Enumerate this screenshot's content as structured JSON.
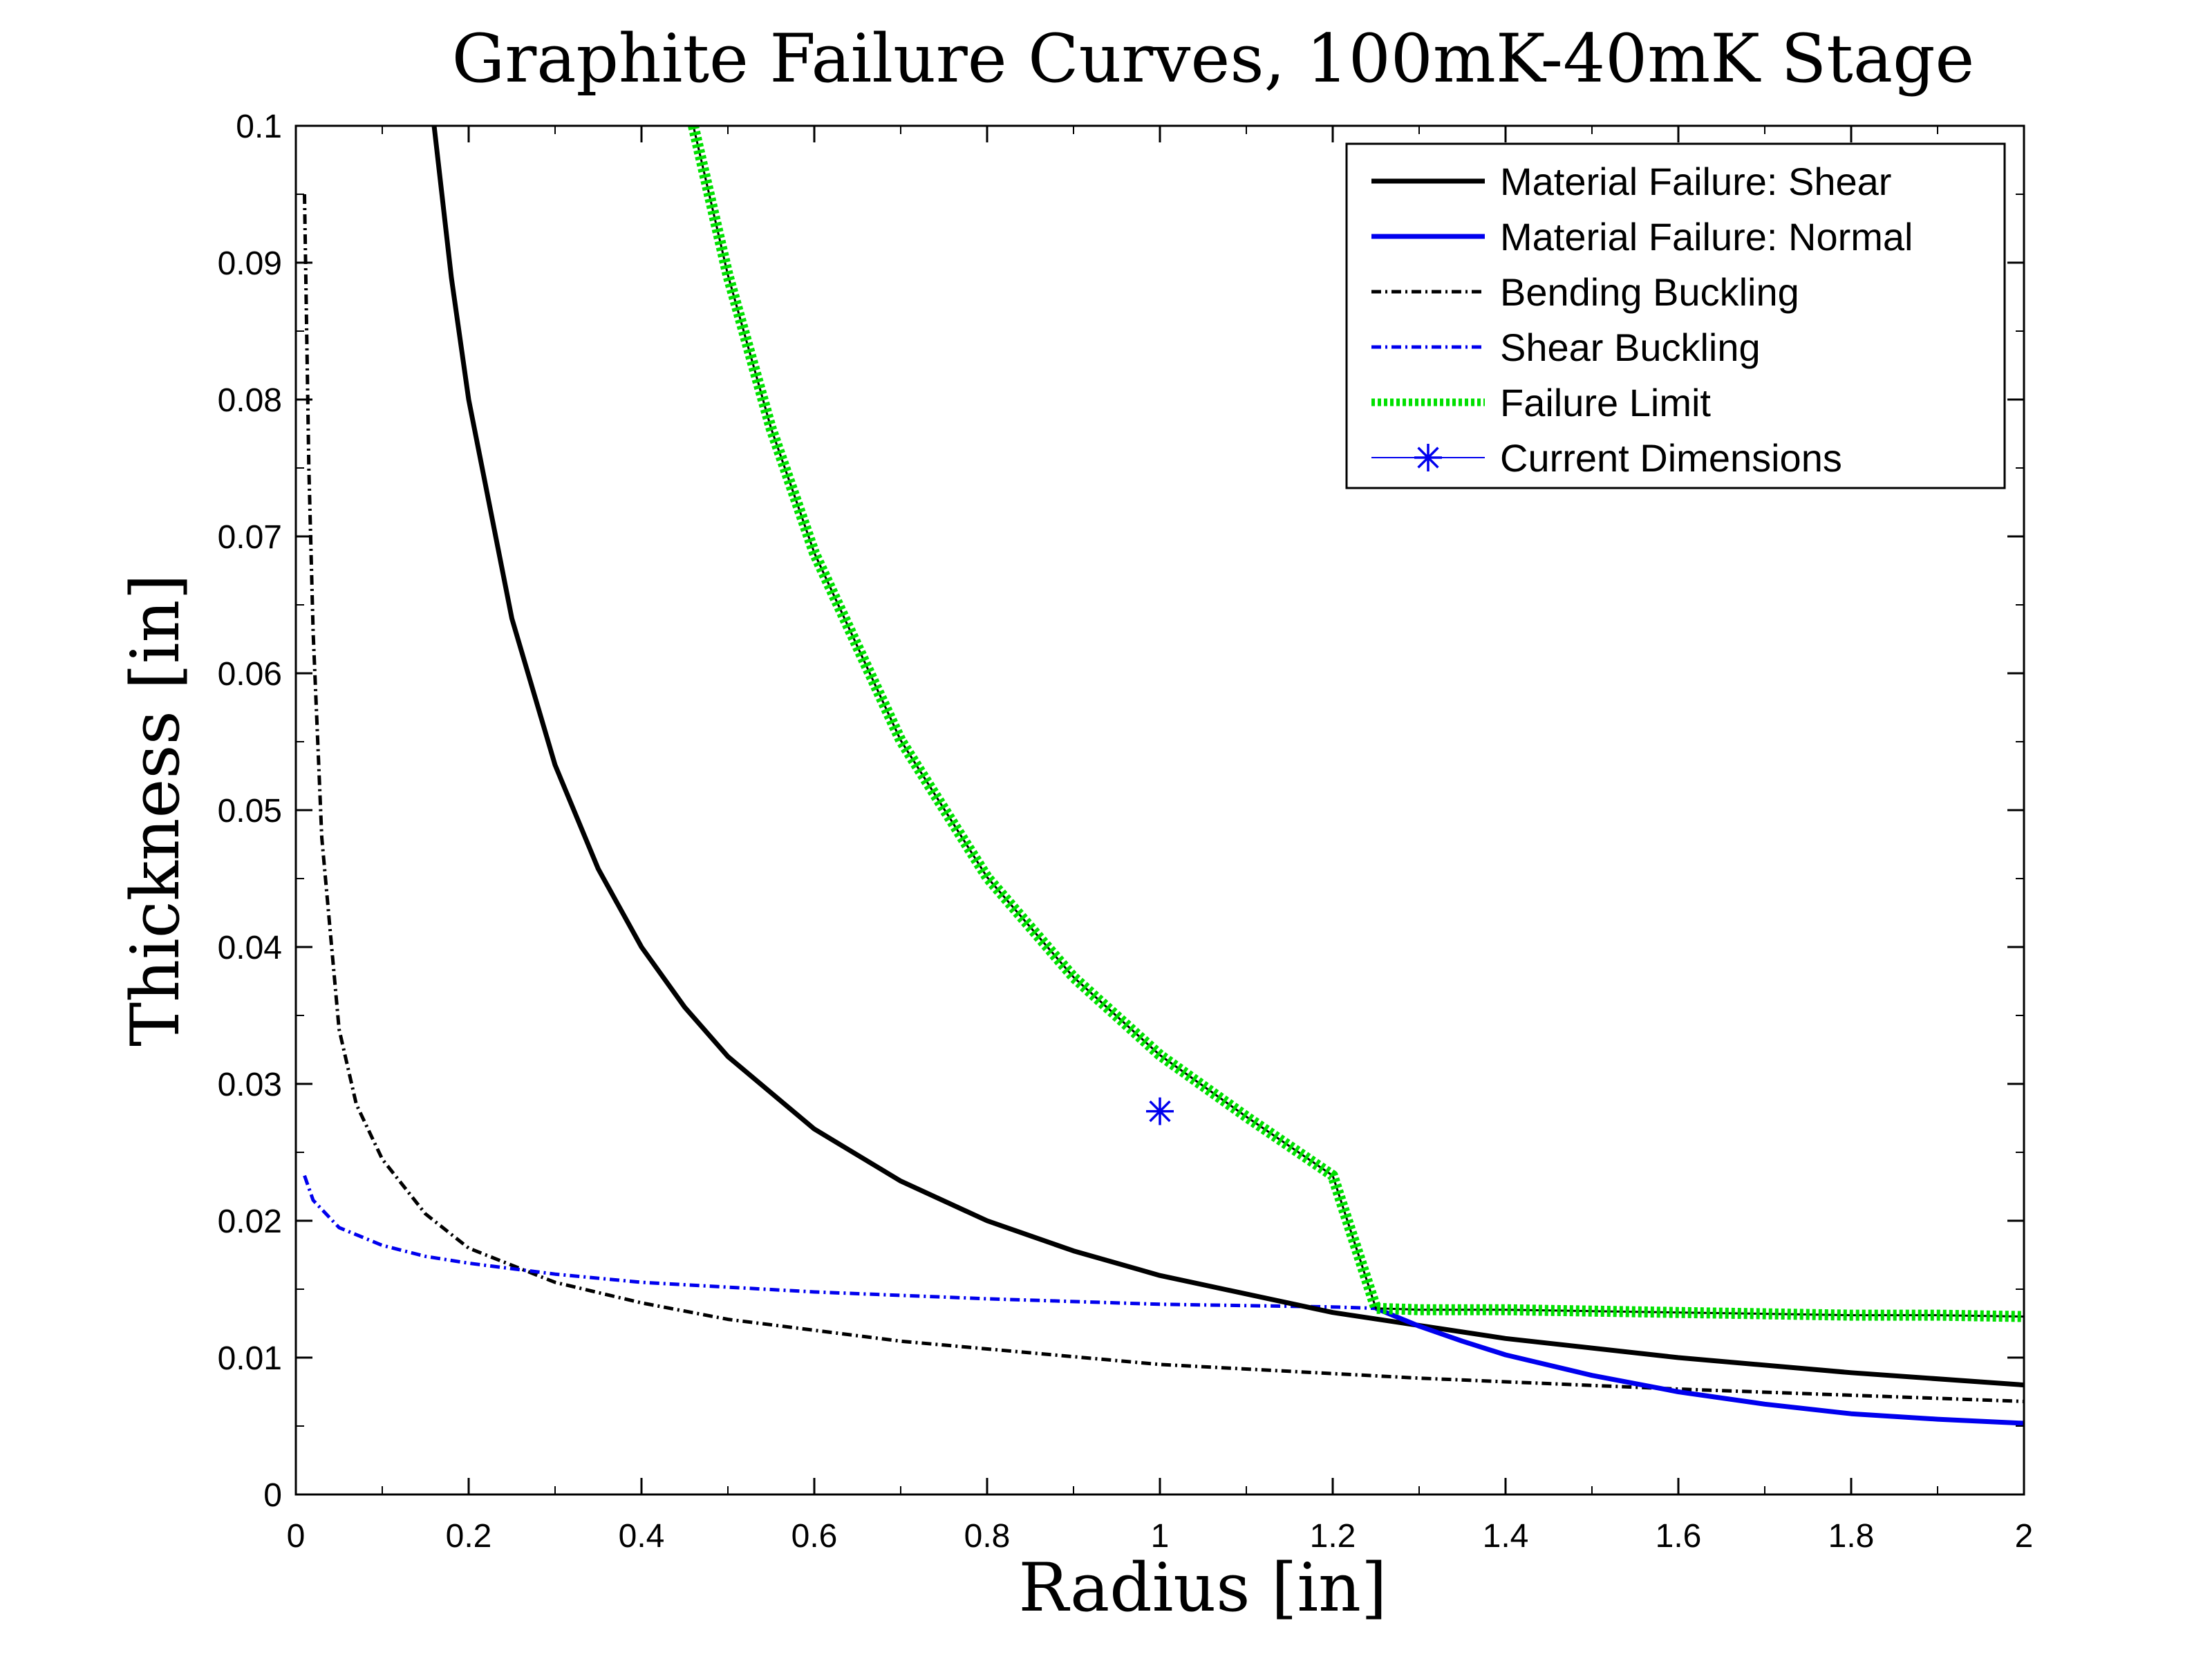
{
  "chart_data": {
    "type": "line",
    "title": "Graphite Failure Curves, 100mK-40mK Stage",
    "xlabel": "Radius [in]",
    "ylabel": "Thickness [in]",
    "xlim": [
      0,
      2
    ],
    "ylim": [
      0,
      0.1
    ],
    "x_ticks": [
      "0",
      "0.2",
      "0.4",
      "0.6",
      "0.8",
      "1",
      "1.2",
      "1.4",
      "1.6",
      "1.8",
      "2"
    ],
    "y_ticks": [
      "0",
      "0.01",
      "0.02",
      "0.03",
      "0.04",
      "0.05",
      "0.06",
      "0.07",
      "0.08",
      "0.09",
      "0.1"
    ],
    "grid": false,
    "legend_position": "top-right",
    "series": [
      {
        "name": "Material Failure: Shear",
        "color": "#000000",
        "style": "solid",
        "x": [
          0.16,
          0.18,
          0.2,
          0.25,
          0.3,
          0.35,
          0.4,
          0.45,
          0.5,
          0.6,
          0.7,
          0.8,
          0.9,
          1.0,
          1.2,
          1.4,
          1.6,
          1.8,
          2.0
        ],
        "y": [
          0.1,
          0.0889,
          0.08,
          0.064,
          0.0533,
          0.0457,
          0.04,
          0.0356,
          0.032,
          0.0267,
          0.0229,
          0.02,
          0.0178,
          0.016,
          0.0133,
          0.0114,
          0.01,
          0.0089,
          0.008
        ]
      },
      {
        "name": "Material Failure: Normal",
        "color": "#0000ee",
        "style": "solid",
        "x": [
          1.25,
          1.3,
          1.35,
          1.4,
          1.5,
          1.6,
          1.7,
          1.8,
          1.9,
          2.0
        ],
        "y": [
          0.0136,
          0.0123,
          0.0112,
          0.0102,
          0.0087,
          0.0075,
          0.0066,
          0.0059,
          0.0055,
          0.0052
        ]
      },
      {
        "name": "Bending Buckling",
        "color": "#000000",
        "style": "dash-dot",
        "x": [
          0.01,
          0.015,
          0.02,
          0.03,
          0.05,
          0.07,
          0.1,
          0.15,
          0.2,
          0.3,
          0.4,
          0.5,
          0.7,
          1.0,
          1.3,
          1.6,
          2.0
        ],
        "y": [
          0.095,
          0.075,
          0.063,
          0.048,
          0.034,
          0.0285,
          0.0245,
          0.0205,
          0.018,
          0.0155,
          0.014,
          0.0128,
          0.0112,
          0.0095,
          0.0085,
          0.0077,
          0.0068
        ]
      },
      {
        "name": "Shear Buckling",
        "color": "#0000ee",
        "style": "dash-dot",
        "x": [
          0.01,
          0.02,
          0.05,
          0.1,
          0.15,
          0.2,
          0.3,
          0.4,
          0.6,
          0.8,
          1.0,
          1.2,
          1.25
        ],
        "y": [
          0.0233,
          0.0215,
          0.0195,
          0.0182,
          0.0174,
          0.0169,
          0.0161,
          0.0155,
          0.0148,
          0.0143,
          0.0139,
          0.0137,
          0.0136
        ]
      },
      {
        "name": "Failure Limit",
        "color": "#00e000",
        "style": "thick-dotted",
        "x": [
          0.46,
          0.5,
          0.55,
          0.6,
          0.7,
          0.8,
          0.9,
          1.0,
          1.1,
          1.2,
          1.25,
          1.3,
          1.4,
          1.5,
          1.6,
          1.7,
          1.8,
          1.9,
          2.0
        ],
        "y": [
          0.1,
          0.0891,
          0.0779,
          0.0688,
          0.0551,
          0.0451,
          0.0378,
          0.0321,
          0.0276,
          0.0233,
          0.0136,
          0.0135,
          0.0135,
          0.0134,
          0.0133,
          0.0132,
          0.0131,
          0.0131,
          0.013
        ]
      },
      {
        "name": "Current Dimensions",
        "color": "#0000ee",
        "style": "marker-asterisk",
        "x": [
          1.0
        ],
        "y": [
          0.028
        ]
      }
    ]
  }
}
